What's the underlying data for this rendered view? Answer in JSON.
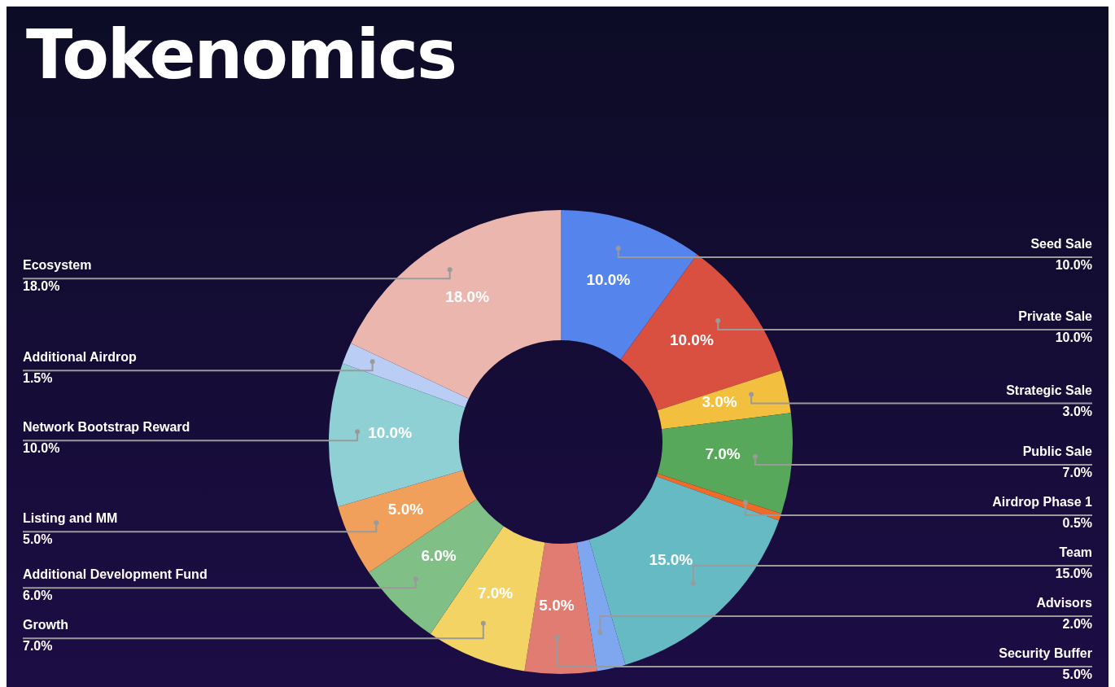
{
  "chart_data": {
    "type": "donut",
    "title": "Tokenomics",
    "categories": [
      "Seed Sale",
      "Private Sale",
      "Strategic Sale",
      "Public Sale",
      "Airdrop Phase 1",
      "Team",
      "Advisors",
      "Security Buffer",
      "Growth",
      "Additional Development Fund",
      "Listing and MM",
      "Network Bootstrap Reward",
      "Additional Airdrop",
      "Ecosystem"
    ],
    "values": [
      10,
      10,
      3,
      7,
      0.5,
      15,
      2,
      5,
      7,
      6,
      5,
      10,
      1.5,
      18
    ],
    "value_labels": [
      "10.0%",
      "10.0%",
      "3.0%",
      "7.0%",
      "0.5%",
      "15.0%",
      "2.0%",
      "5.0%",
      "7.0%",
      "6.0%",
      "5.0%",
      "10.0%",
      "1.5%",
      "18.0%"
    ],
    "colors": [
      "#5484ec",
      "#d94f40",
      "#f2bf3f",
      "#57a85a",
      "#ee6b28",
      "#66bac4",
      "#7ea7f0",
      "#e07c72",
      "#f4d365",
      "#80bf85",
      "#f0a05a",
      "#8fd0d5",
      "#b9cdf5",
      "#ebb6ae"
    ],
    "legend": false
  }
}
